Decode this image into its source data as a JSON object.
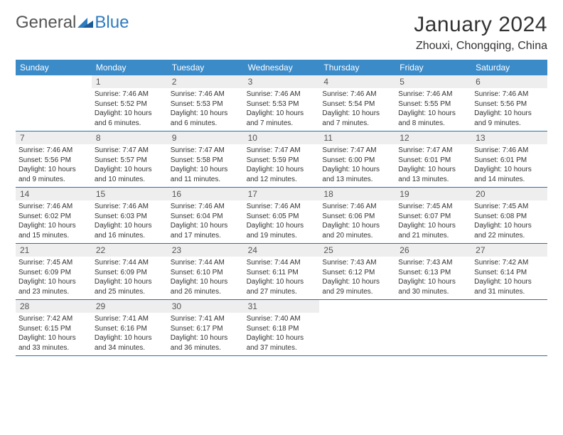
{
  "logo": {
    "text1": "General",
    "text2": "Blue",
    "color1": "#6a6a6a",
    "color2": "#2f7bbf"
  },
  "title": "January 2024",
  "location": "Zhouxi, Chongqing, China",
  "colors": {
    "header_bg": "#3b8bc9",
    "header_text": "#ffffff",
    "daynum_bg": "#eeeeee",
    "rule": "#2f6fa6"
  },
  "weekdays": [
    "Sunday",
    "Monday",
    "Tuesday",
    "Wednesday",
    "Thursday",
    "Friday",
    "Saturday"
  ],
  "weeks": [
    [
      null,
      {
        "n": "1",
        "sr": "7:46 AM",
        "ss": "5:52 PM",
        "dl": "10 hours and 6 minutes."
      },
      {
        "n": "2",
        "sr": "7:46 AM",
        "ss": "5:53 PM",
        "dl": "10 hours and 6 minutes."
      },
      {
        "n": "3",
        "sr": "7:46 AM",
        "ss": "5:53 PM",
        "dl": "10 hours and 7 minutes."
      },
      {
        "n": "4",
        "sr": "7:46 AM",
        "ss": "5:54 PM",
        "dl": "10 hours and 7 minutes."
      },
      {
        "n": "5",
        "sr": "7:46 AM",
        "ss": "5:55 PM",
        "dl": "10 hours and 8 minutes."
      },
      {
        "n": "6",
        "sr": "7:46 AM",
        "ss": "5:56 PM",
        "dl": "10 hours and 9 minutes."
      }
    ],
    [
      {
        "n": "7",
        "sr": "7:46 AM",
        "ss": "5:56 PM",
        "dl": "10 hours and 9 minutes."
      },
      {
        "n": "8",
        "sr": "7:47 AM",
        "ss": "5:57 PM",
        "dl": "10 hours and 10 minutes."
      },
      {
        "n": "9",
        "sr": "7:47 AM",
        "ss": "5:58 PM",
        "dl": "10 hours and 11 minutes."
      },
      {
        "n": "10",
        "sr": "7:47 AM",
        "ss": "5:59 PM",
        "dl": "10 hours and 12 minutes."
      },
      {
        "n": "11",
        "sr": "7:47 AM",
        "ss": "6:00 PM",
        "dl": "10 hours and 13 minutes."
      },
      {
        "n": "12",
        "sr": "7:47 AM",
        "ss": "6:01 PM",
        "dl": "10 hours and 13 minutes."
      },
      {
        "n": "13",
        "sr": "7:46 AM",
        "ss": "6:01 PM",
        "dl": "10 hours and 14 minutes."
      }
    ],
    [
      {
        "n": "14",
        "sr": "7:46 AM",
        "ss": "6:02 PM",
        "dl": "10 hours and 15 minutes."
      },
      {
        "n": "15",
        "sr": "7:46 AM",
        "ss": "6:03 PM",
        "dl": "10 hours and 16 minutes."
      },
      {
        "n": "16",
        "sr": "7:46 AM",
        "ss": "6:04 PM",
        "dl": "10 hours and 17 minutes."
      },
      {
        "n": "17",
        "sr": "7:46 AM",
        "ss": "6:05 PM",
        "dl": "10 hours and 19 minutes."
      },
      {
        "n": "18",
        "sr": "7:46 AM",
        "ss": "6:06 PM",
        "dl": "10 hours and 20 minutes."
      },
      {
        "n": "19",
        "sr": "7:45 AM",
        "ss": "6:07 PM",
        "dl": "10 hours and 21 minutes."
      },
      {
        "n": "20",
        "sr": "7:45 AM",
        "ss": "6:08 PM",
        "dl": "10 hours and 22 minutes."
      }
    ],
    [
      {
        "n": "21",
        "sr": "7:45 AM",
        "ss": "6:09 PM",
        "dl": "10 hours and 23 minutes."
      },
      {
        "n": "22",
        "sr": "7:44 AM",
        "ss": "6:09 PM",
        "dl": "10 hours and 25 minutes."
      },
      {
        "n": "23",
        "sr": "7:44 AM",
        "ss": "6:10 PM",
        "dl": "10 hours and 26 minutes."
      },
      {
        "n": "24",
        "sr": "7:44 AM",
        "ss": "6:11 PM",
        "dl": "10 hours and 27 minutes."
      },
      {
        "n": "25",
        "sr": "7:43 AM",
        "ss": "6:12 PM",
        "dl": "10 hours and 29 minutes."
      },
      {
        "n": "26",
        "sr": "7:43 AM",
        "ss": "6:13 PM",
        "dl": "10 hours and 30 minutes."
      },
      {
        "n": "27",
        "sr": "7:42 AM",
        "ss": "6:14 PM",
        "dl": "10 hours and 31 minutes."
      }
    ],
    [
      {
        "n": "28",
        "sr": "7:42 AM",
        "ss": "6:15 PM",
        "dl": "10 hours and 33 minutes."
      },
      {
        "n": "29",
        "sr": "7:41 AM",
        "ss": "6:16 PM",
        "dl": "10 hours and 34 minutes."
      },
      {
        "n": "30",
        "sr": "7:41 AM",
        "ss": "6:17 PM",
        "dl": "10 hours and 36 minutes."
      },
      {
        "n": "31",
        "sr": "7:40 AM",
        "ss": "6:18 PM",
        "dl": "10 hours and 37 minutes."
      },
      null,
      null,
      null
    ]
  ]
}
